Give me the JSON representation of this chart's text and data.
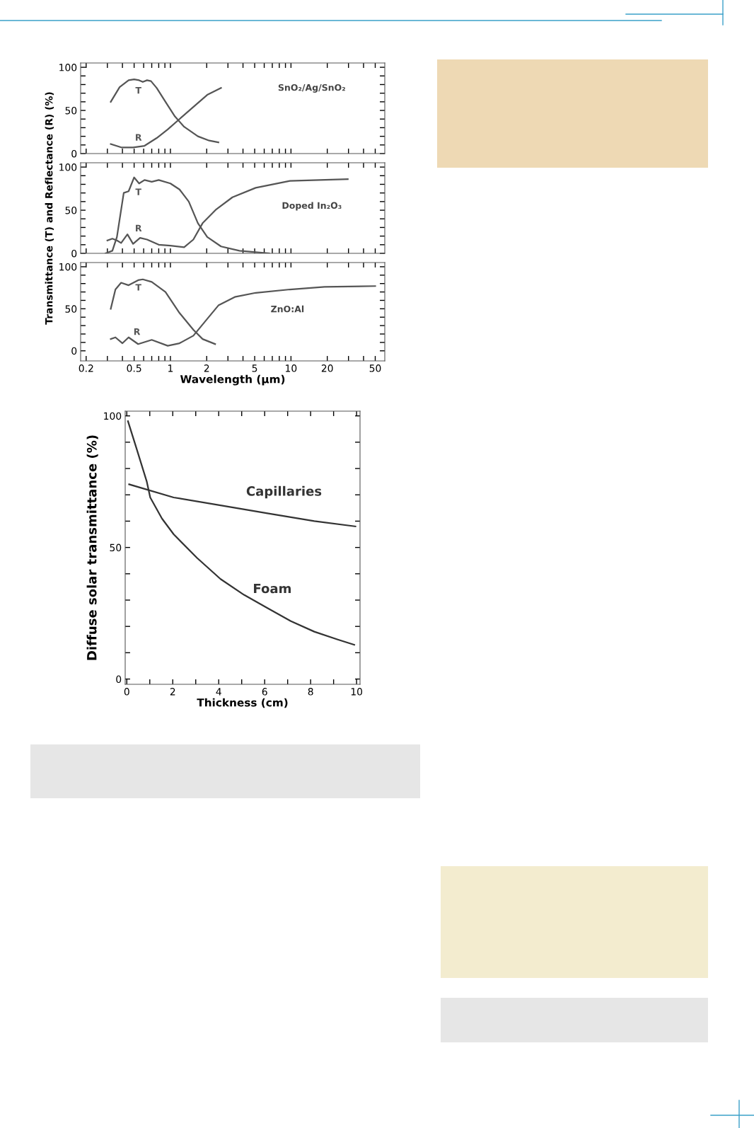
{
  "chart_data": [
    {
      "type": "line",
      "log": "x",
      "xlim": [
        0.18,
        60
      ],
      "ylim": [
        0,
        105
      ],
      "tick_labels": "y",
      "xticks": [
        0.2,
        {
          "value": 0.3,
          "label": null
        },
        {
          "value": 0.4,
          "label": null
        },
        0.5,
        {
          "value": 0.6,
          "label": null
        },
        {
          "value": 0.7,
          "label": null
        },
        {
          "value": 0.8,
          "label": null
        },
        {
          "value": 0.9,
          "label": null
        },
        1,
        2,
        {
          "value": 3,
          "label": null
        },
        {
          "value": 4,
          "label": null
        },
        5,
        {
          "value": 6,
          "label": null
        },
        {
          "value": 7,
          "label": null
        },
        {
          "value": 8,
          "label": null
        },
        {
          "value": 9,
          "label": null
        },
        10,
        20,
        {
          "value": 30,
          "label": null
        },
        {
          "value": 40,
          "label": null
        },
        50
      ],
      "yticks": [
        0,
        {
          "value": 10,
          "label": null
        },
        {
          "value": 20,
          "label": null
        },
        {
          "value": 30,
          "label": null
        },
        {
          "value": 40,
          "label": null
        },
        50,
        {
          "value": 60,
          "label": null
        },
        {
          "value": 70,
          "label": null
        },
        {
          "value": 80,
          "label": null
        },
        {
          "value": 90,
          "label": null
        },
        100
      ],
      "series": [
        {
          "name": "T",
          "color": "#555555",
          "x": [
            0.32,
            0.379,
            0.45,
            0.5,
            0.55,
            0.59,
            0.64,
            0.69,
            0.77,
            0.91,
            1.09,
            1.3,
            1.69,
            2.1,
            2.5
          ],
          "values": [
            60,
            77,
            85,
            86,
            85,
            83,
            85,
            84,
            76,
            60,
            43,
            31,
            20,
            15,
            13
          ]
        },
        {
          "name": "R",
          "color": "#555555",
          "x": [
            0.32,
            0.395,
            0.49,
            0.61,
            0.77,
            0.95,
            1.19,
            1.55,
            2.02,
            2.63
          ],
          "values": [
            11,
            7,
            7,
            9,
            18,
            28,
            40,
            54,
            68,
            76
          ]
        }
      ],
      "annotations": [
        "SnO₂/Ag/SnO₂"
      ]
    },
    {
      "type": "line",
      "log": "x",
      "xlim": [
        0.18,
        60
      ],
      "ylim": [
        0,
        105
      ],
      "tick_labels": "y",
      "ylabel": "Transmittance (T) and Reflectance (R) (%)",
      "xticks": [
        0.2,
        {
          "value": 0.3,
          "label": null
        },
        {
          "value": 0.4,
          "label": null
        },
        0.5,
        {
          "value": 0.6,
          "label": null
        },
        {
          "value": 0.7,
          "label": null
        },
        {
          "value": 0.8,
          "label": null
        },
        {
          "value": 0.9,
          "label": null
        },
        1,
        2,
        {
          "value": 3,
          "label": null
        },
        {
          "value": 4,
          "label": null
        },
        5,
        {
          "value": 6,
          "label": null
        },
        {
          "value": 7,
          "label": null
        },
        {
          "value": 8,
          "label": null
        },
        {
          "value": 9,
          "label": null
        },
        10,
        20,
        {
          "value": 30,
          "label": null
        },
        {
          "value": 40,
          "label": null
        },
        50
      ],
      "yticks": [
        0,
        {
          "value": 10,
          "label": null
        },
        {
          "value": 20,
          "label": null
        },
        {
          "value": 30,
          "label": null
        },
        {
          "value": 40,
          "label": null
        },
        50,
        {
          "value": 60,
          "label": null
        },
        {
          "value": 70,
          "label": null
        },
        {
          "value": 80,
          "label": null
        },
        {
          "value": 90,
          "label": null
        },
        100
      ],
      "series": [
        {
          "name": "T",
          "color": "#555555",
          "x": [
            0.29,
            0.33,
            0.36,
            0.41,
            0.45,
            0.5,
            0.55,
            0.61,
            0.7,
            0.8,
            1.0,
            1.19,
            1.42,
            1.69,
            2.02,
            2.63,
            3.74,
            6.6
          ],
          "values": [
            0,
            3,
            19,
            70,
            72,
            88,
            81,
            85,
            83,
            85,
            81,
            74,
            60,
            35,
            19,
            8,
            3,
            0
          ]
        },
        {
          "name": "R",
          "color": "#555555",
          "x": [
            0.3,
            0.33,
            0.36,
            0.39,
            0.44,
            0.49,
            0.56,
            0.64,
            0.8,
            1.0,
            1.3,
            1.55,
            1.85,
            2.4,
            3.27,
            5.1,
            9.8,
            29.6
          ],
          "values": [
            15,
            17,
            15,
            12,
            22,
            11,
            18,
            16,
            10,
            9,
            7,
            16,
            35,
            51,
            65,
            76,
            84,
            86
          ]
        }
      ],
      "annotations": [
        "Doped In₂O₃"
      ]
    },
    {
      "type": "line",
      "log": "x",
      "xlim": [
        0.18,
        60
      ],
      "ylim": [
        -12,
        105
      ],
      "xlabel": "Wavelength (µm)",
      "xticks": [
        0.2,
        {
          "value": 0.3,
          "label": null
        },
        {
          "value": 0.4,
          "label": null
        },
        0.5,
        {
          "value": 0.6,
          "label": null
        },
        {
          "value": 0.7,
          "label": null
        },
        {
          "value": 0.8,
          "label": null
        },
        {
          "value": 0.9,
          "label": null
        },
        1,
        2,
        {
          "value": 3,
          "label": null
        },
        {
          "value": 4,
          "label": null
        },
        5,
        {
          "value": 6,
          "label": null
        },
        {
          "value": 7,
          "label": null
        },
        {
          "value": 8,
          "label": null
        },
        {
          "value": 9,
          "label": null
        },
        10,
        20,
        {
          "value": 30,
          "label": null
        },
        {
          "value": 40,
          "label": null
        },
        50
      ],
      "yticks": [
        0,
        {
          "value": 10,
          "label": null
        },
        {
          "value": 20,
          "label": null
        },
        {
          "value": 30,
          "label": null
        },
        {
          "value": 40,
          "label": null
        },
        50,
        {
          "value": 60,
          "label": null
        },
        {
          "value": 70,
          "label": null
        },
        {
          "value": 80,
          "label": null
        },
        {
          "value": 90,
          "label": null
        },
        100
      ],
      "series": [
        {
          "name": "T",
          "color": "#555555",
          "x": [
            0.32,
            0.35,
            0.39,
            0.45,
            0.54,
            0.59,
            0.7,
            0.91,
            1.19,
            1.55,
            1.85,
            2.35
          ],
          "values": [
            50,
            73,
            81,
            78,
            84,
            85,
            82,
            70,
            45,
            25,
            14,
            8
          ]
        },
        {
          "name": "R",
          "color": "#555555",
          "x": [
            0.32,
            0.35,
            0.4,
            0.45,
            0.54,
            0.7,
            0.95,
            1.19,
            1.55,
            2.02,
            2.5,
            3.42,
            5.1,
            9.8,
            19,
            50
          ],
          "values": [
            14,
            16,
            9,
            16,
            8,
            13,
            6,
            9,
            18,
            38,
            54,
            64,
            69,
            73,
            76,
            77
          ]
        }
      ],
      "annotations": [
        "ZnO:Al"
      ]
    },
    {
      "type": "line",
      "xlim": [
        -0.07,
        10.15
      ],
      "ylim": [
        -2,
        101.8
      ],
      "xlabel": "Thickness (cm)",
      "ylabel": "Diffuse solar transmittance (%)",
      "xticks": [
        0,
        {
          "value": 1,
          "label": null
        },
        2,
        {
          "value": 3,
          "label": null
        },
        4,
        {
          "value": 5,
          "label": null
        },
        6,
        {
          "value": 7,
          "label": null
        },
        8,
        {
          "value": 9,
          "label": null
        },
        10
      ],
      "yticks": [
        0,
        {
          "value": 10,
          "label": null
        },
        {
          "value": 20,
          "label": null
        },
        {
          "value": 30,
          "label": null
        },
        {
          "value": 40,
          "label": null
        },
        50,
        {
          "value": 60,
          "label": null
        },
        {
          "value": 70,
          "label": null
        },
        {
          "value": 80,
          "label": null
        },
        {
          "value": 90,
          "label": null
        },
        100
      ],
      "series": [
        {
          "name": "Capillaries",
          "color": "#333333",
          "x": [
            0.1,
            2.04,
            4.08,
            6.12,
            8.16,
            9.95
          ],
          "values": [
            74,
            69,
            66,
            63,
            60,
            58
          ]
        },
        {
          "name": "Foam",
          "color": "#333333",
          "x": [
            0.05,
            0.41,
            0.87,
            1.02,
            1.53,
            2.04,
            3.06,
            4.08,
            5.1,
            6.12,
            7.14,
            8.16,
            9.18,
            9.9
          ],
          "values": [
            98,
            88,
            75,
            69,
            61,
            55,
            46,
            38,
            32,
            27,
            22,
            18,
            15,
            13
          ]
        }
      ]
    }
  ]
}
